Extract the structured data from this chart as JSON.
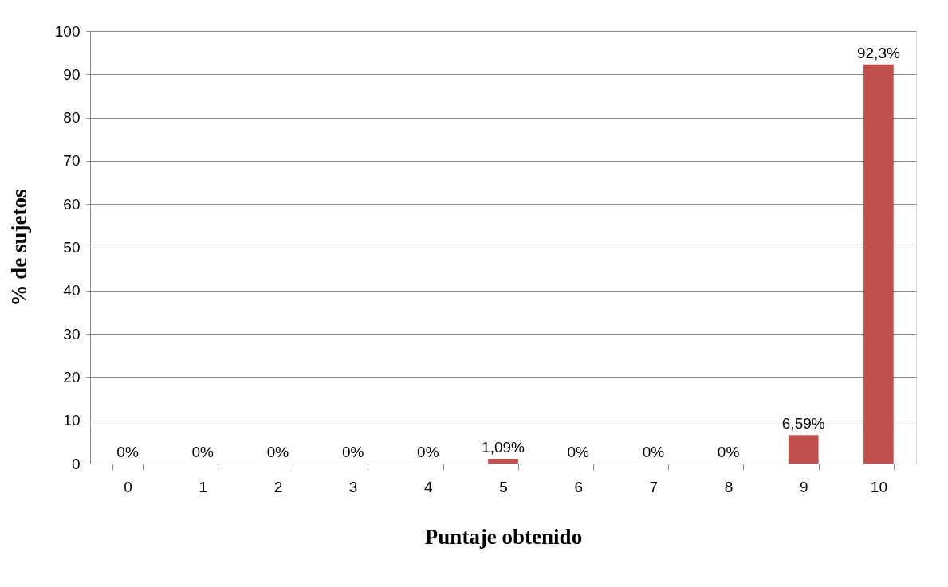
{
  "chart_data": {
    "type": "bar",
    "xlabel": "Puntaje obtenido",
    "ylabel": "% de sujetos",
    "categories": [
      "0",
      "1",
      "2",
      "3",
      "4",
      "5",
      "6",
      "7",
      "8",
      "9",
      "10"
    ],
    "values": [
      0,
      0,
      0,
      0,
      0,
      1.09,
      0,
      0,
      0,
      6.59,
      92.3
    ],
    "value_labels": [
      "0%",
      "0%",
      "0%",
      "0%",
      "0%",
      "1,09%",
      "0%",
      "0%",
      "0%",
      "6,59%",
      "92,3%"
    ],
    "color": "#c0504d",
    "ylim": [
      0,
      100
    ],
    "yticks": [
      0,
      10,
      20,
      30,
      40,
      50,
      60,
      70,
      80,
      90,
      100
    ],
    "grid": "y"
  }
}
